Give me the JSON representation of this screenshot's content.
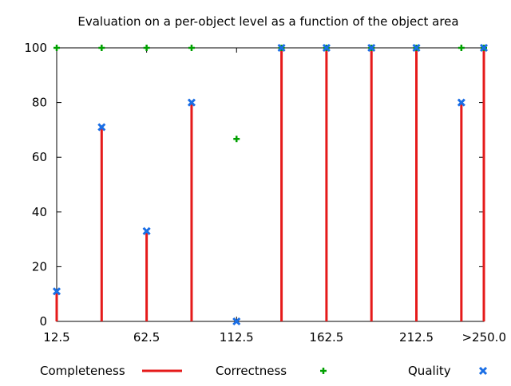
{
  "chart_data": {
    "type": "bar",
    "title": "Evaluation on a per-object level as a function of the object area",
    "xlabel": "",
    "ylabel": "",
    "x": [
      12.5,
      37.5,
      62.5,
      87.5,
      112.5,
      137.5,
      162.5,
      187.5,
      212.5,
      237.5,
      250
    ],
    "x_tick_labels": [
      {
        "x": 12.5,
        "label": "12.5"
      },
      {
        "x": 62.5,
        "label": "62.5"
      },
      {
        "x": 112.5,
        "label": "112.5"
      },
      {
        "x": 162.5,
        "label": "162.5"
      },
      {
        "x": 212.5,
        "label": "212.5"
      },
      {
        "x": 250,
        "label": ">250.0"
      }
    ],
    "xlim": [
      12.5,
      250
    ],
    "ylim": [
      0,
      100
    ],
    "y_ticks": [
      0,
      20,
      40,
      60,
      80,
      100
    ],
    "grid": false,
    "legend_position": "bottom",
    "series": [
      {
        "name": "Completeness",
        "style": "impulses",
        "color": "#e51a1a",
        "values": [
          11,
          71,
          33,
          80,
          0,
          100,
          100,
          100,
          100,
          80,
          100
        ]
      },
      {
        "name": "Correctness",
        "style": "points-plus",
        "color": "#00a000",
        "values": [
          100,
          100,
          100,
          100,
          66.7,
          100,
          100,
          100,
          100,
          100,
          100
        ]
      },
      {
        "name": "Quality",
        "style": "points-x",
        "color": "#1a6ee5",
        "values": [
          11,
          71,
          33,
          80,
          0,
          100,
          100,
          100,
          100,
          80,
          100
        ]
      }
    ]
  }
}
